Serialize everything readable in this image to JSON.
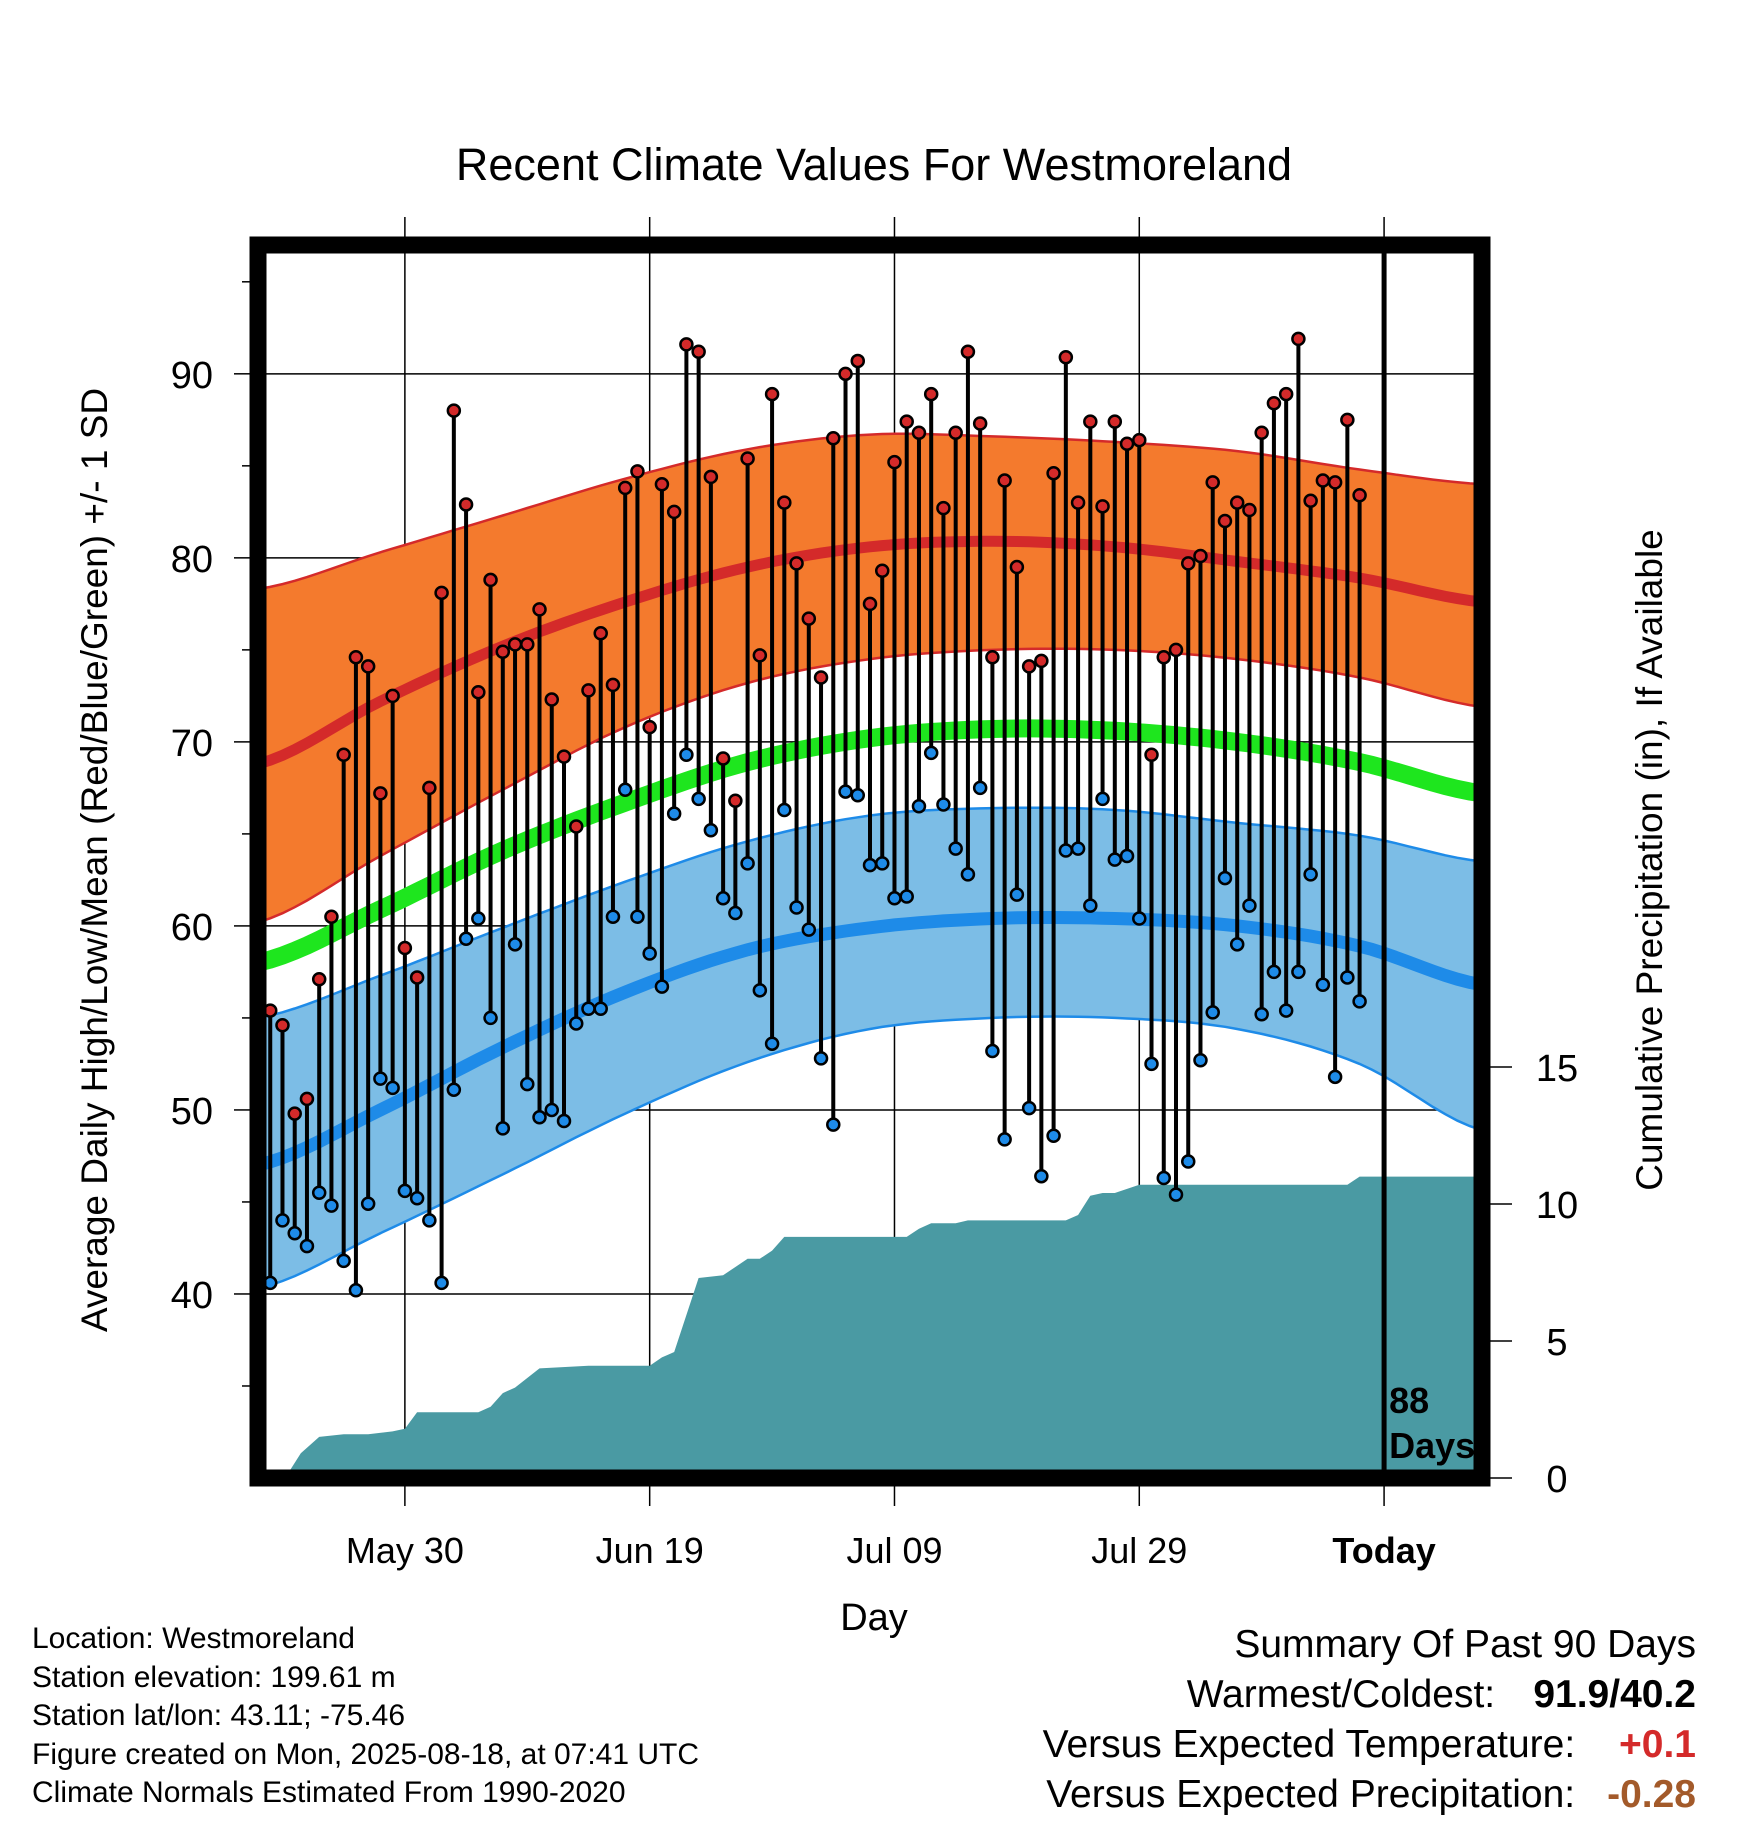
{
  "chart_data": {
    "type": "line",
    "title": "Recent Climate Values For Westmoreland",
    "xlabel": "Day",
    "ylabel": "Average Daily High/Low/Mean (Red/Blue/Green) +/- 1 SD",
    "y2label": "Cumulative Precipitation (in), If Available",
    "x_tick_labels": [
      "May 30",
      "Jun 19",
      "Jul 09",
      "Jul 29",
      "Today"
    ],
    "x_tick_days": [
      12,
      32,
      52,
      72,
      92
    ],
    "x_range_days": [
      0,
      100
    ],
    "ylim": [
      30,
      97
    ],
    "y_ticks": [
      40,
      50,
      60,
      70,
      80,
      90
    ],
    "y2lim": [
      0,
      45
    ],
    "y2_ticks": [
      0,
      5,
      10,
      15
    ],
    "today_marker_label": "88\nDays",
    "grid": true,
    "colors": {
      "high_band": "#f47a2d",
      "high_line": "#d42a2a",
      "low_band": "#7cbde6",
      "low_line": "#1e8be8",
      "mean_line": "#1ee61e",
      "precip": "#4a9aa3",
      "high_dot": "#d42a2a",
      "low_dot": "#1e8be8"
    },
    "normals": {
      "days": [
        0,
        10,
        20,
        30,
        40,
        50,
        60,
        70,
        80,
        90,
        100
      ],
      "high_mean": [
        68.8,
        72.2,
        75.2,
        77.6,
        79.5,
        80.6,
        80.9,
        80.6,
        79.8,
        78.9,
        77.6
      ],
      "high_upper": [
        78.3,
        80.3,
        82.3,
        84.3,
        85.9,
        86.7,
        86.6,
        86.3,
        85.8,
        84.8,
        84.0
      ],
      "high_lower": [
        60.2,
        63.8,
        67.4,
        70.8,
        73.2,
        74.5,
        75.0,
        75.0,
        74.5,
        73.5,
        71.9
      ],
      "mean": [
        58.0,
        60.9,
        64.1,
        66.7,
        68.9,
        70.2,
        70.7,
        70.6,
        70.0,
        68.9,
        67.2
      ],
      "low_mean": [
        47.0,
        50.0,
        53.4,
        56.4,
        58.7,
        59.9,
        60.4,
        60.4,
        60.0,
        58.9,
        56.8
      ],
      "low_upper": [
        55.0,
        57.3,
        59.9,
        62.4,
        64.6,
        66.0,
        66.4,
        66.3,
        65.6,
        64.9,
        63.5
      ],
      "low_lower": [
        40.3,
        43.3,
        46.5,
        49.8,
        52.6,
        54.4,
        55.0,
        55.0,
        54.4,
        52.5,
        48.9
      ]
    },
    "series": [
      {
        "name": "High",
        "values": [
          55.4,
          54.6,
          49.8,
          50.6,
          57.1,
          60.5,
          69.3,
          74.6,
          74.1,
          67.2,
          72.5,
          58.8,
          57.2,
          67.5,
          78.1,
          88.0,
          82.9,
          72.7,
          78.8,
          74.9,
          75.3,
          75.3,
          77.2,
          72.3,
          69.2,
          65.4,
          72.8,
          75.9,
          73.1,
          83.8,
          84.7,
          70.8,
          84.0,
          82.5,
          91.6,
          91.2,
          84.4,
          69.1,
          66.8,
          85.4,
          74.7,
          88.9,
          83.0,
          79.7,
          76.7,
          73.5,
          86.5,
          90.0,
          90.7,
          77.5,
          79.3,
          85.2,
          87.4,
          86.8,
          88.9,
          82.7,
          86.8,
          91.2,
          87.3,
          74.6,
          84.2,
          79.5,
          74.1,
          74.4,
          84.6,
          90.9,
          83.0,
          87.4,
          82.8,
          87.4,
          86.2,
          86.4,
          69.3,
          74.6,
          75.0,
          79.7,
          80.1,
          84.1,
          82.0,
          83.0,
          82.6,
          86.8,
          88.4,
          88.9,
          91.9,
          83.1,
          84.2,
          84.1,
          87.5,
          83.4
        ]
      },
      {
        "name": "Low",
        "values": [
          40.6,
          44.0,
          43.3,
          42.6,
          45.5,
          44.8,
          41.8,
          40.2,
          44.9,
          51.7,
          51.2,
          45.6,
          45.2,
          44.0,
          40.6,
          51.1,
          59.3,
          60.4,
          55.0,
          49.0,
          59.0,
          51.4,
          49.6,
          50.0,
          49.4,
          54.7,
          55.5,
          55.5,
          60.5,
          67.4,
          60.5,
          58.5,
          56.7,
          66.1,
          69.3,
          66.9,
          65.2,
          61.5,
          60.7,
          63.4,
          56.5,
          53.6,
          66.3,
          61.0,
          59.8,
          52.8,
          49.2,
          67.3,
          67.1,
          63.3,
          63.4,
          61.5,
          61.6,
          66.5,
          69.4,
          66.6,
          64.2,
          62.8,
          67.5,
          53.2,
          48.4,
          61.7,
          50.1,
          46.4,
          48.6,
          64.1,
          64.2,
          61.1,
          66.9,
          63.6,
          63.8,
          60.4,
          52.5,
          46.3,
          45.4,
          47.2,
          52.7,
          55.3,
          62.6,
          59.0,
          61.1,
          55.2,
          57.5,
          55.4,
          57.5,
          62.8,
          56.8,
          51.8,
          57.2,
          55.9
        ]
      },
      {
        "name": "Cumulative Precipitation",
        "x": [
          2.5,
          3.5,
          5,
          7,
          9,
          11,
          12,
          13,
          15,
          16,
          17,
          18,
          19,
          20,
          21,
          23,
          27,
          28,
          30,
          32,
          33,
          33.5,
          34,
          36,
          38,
          39,
          40,
          41,
          42,
          43,
          44,
          46,
          48,
          53,
          54,
          55,
          57,
          58,
          66,
          67,
          68,
          69,
          70,
          72,
          73,
          75,
          77,
          79,
          89,
          90,
          99.5
        ],
        "values": [
          0.2,
          0.9,
          1.5,
          1.6,
          1.6,
          1.7,
          1.8,
          2.4,
          2.4,
          2.4,
          2.4,
          2.4,
          2.6,
          3.1,
          3.3,
          4.0,
          4.1,
          4.1,
          4.1,
          4.1,
          4.4,
          4.5,
          4.6,
          7.3,
          7.4,
          7.7,
          8.0,
          8.0,
          8.3,
          8.8,
          8.8,
          8.8,
          8.8,
          8.8,
          9.1,
          9.3,
          9.3,
          9.4,
          9.4,
          9.6,
          10.3,
          10.4,
          10.4,
          10.7,
          10.7,
          10.7,
          10.7,
          10.7,
          10.7,
          11.0,
          11.0
        ]
      }
    ]
  },
  "footer": {
    "location": "Location: Westmoreland",
    "elevation": "Station elevation: 199.61 m",
    "latlon": "Station lat/lon: 43.11; -75.46",
    "created": "Figure created on Mon, 2025-08-18, at 07:41 UTC",
    "normals": "Climate Normals Estimated From 1990-2020"
  },
  "summary": {
    "title": "Summary Of Past 90 Days",
    "warmest_label": "Warmest/Coldest:",
    "warmest_value": "91.9/40.2",
    "temp_label": "Versus Expected Temperature:",
    "temp_value": "+0.1",
    "temp_color": "#d42a2a",
    "precip_label": "Versus Expected Precipitation:",
    "precip_value": "-0.28",
    "precip_color": "#a35a2a"
  }
}
